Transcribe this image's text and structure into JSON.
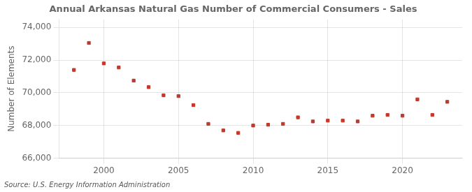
{
  "chart_data": {
    "type": "scatter",
    "title": "Annual Arkansas Natural Gas Number of Commercial Consumers - Sales",
    "ylabel": "Number of Elements",
    "source": "Source: U.S. Energy Information Administration",
    "x": [
      1998,
      1999,
      2000,
      2001,
      2002,
      2003,
      2004,
      2005,
      2006,
      2007,
      2008,
      2009,
      2010,
      2011,
      2012,
      2013,
      2014,
      2015,
      2016,
      2017,
      2018,
      2019,
      2020,
      2021,
      2022,
      2023
    ],
    "values": [
      71400,
      73050,
      71800,
      71550,
      70750,
      70350,
      69850,
      69800,
      69250,
      68100,
      67700,
      67550,
      68000,
      68050,
      68100,
      68500,
      68250,
      68300,
      68300,
      68250,
      68600,
      68650,
      68600,
      69600,
      68650,
      69450
    ],
    "color": "#c0392b",
    "marker": "square",
    "grid": true,
    "xlim": [
      1997.0,
      2024.0
    ],
    "xticks": [
      2000,
      2005,
      2010,
      2015,
      2020
    ],
    "ylim": [
      66000,
      74500
    ],
    "yticks": [
      {
        "value": 66000,
        "label": "66,000"
      },
      {
        "value": 68000,
        "label": "68,000"
      },
      {
        "value": 70000,
        "label": "70,000"
      },
      {
        "value": 72000,
        "label": "72,000"
      },
      {
        "value": 74000,
        "label": "74,000"
      }
    ]
  }
}
